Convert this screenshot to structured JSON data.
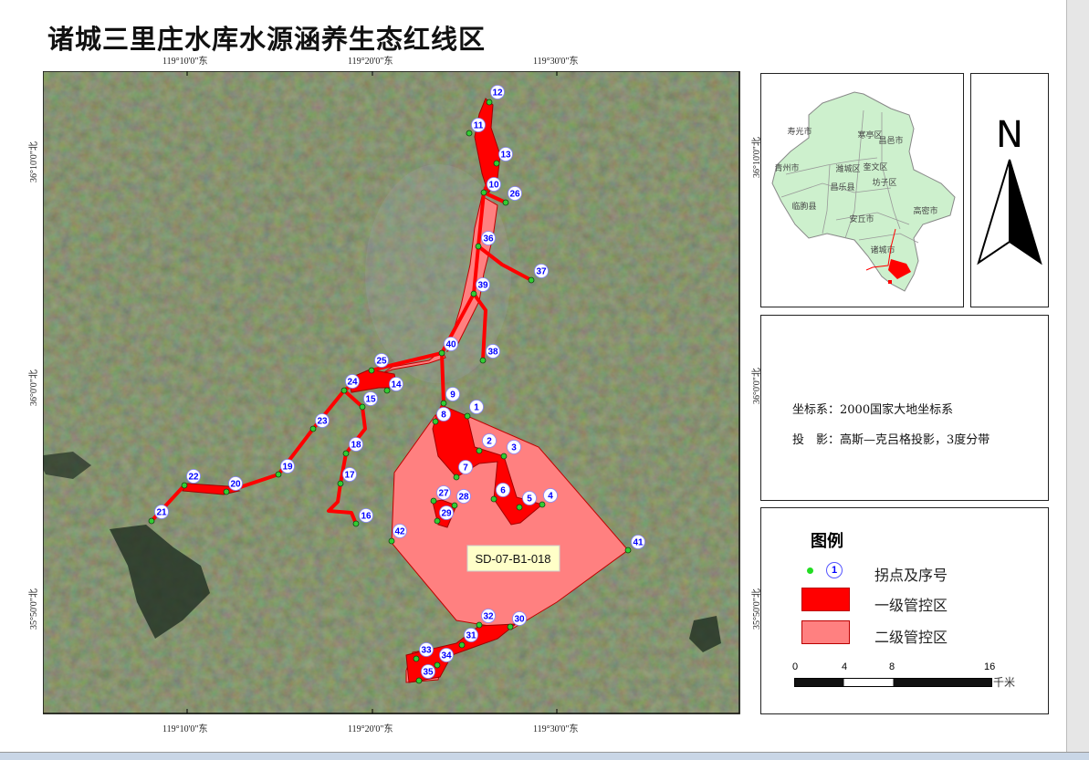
{
  "title": "诸城三里庄水库水源涵养生态红线区",
  "map": {
    "zone_label": "SD-07-B1-018",
    "colors": {
      "primary_zone": "#ff0000",
      "secondary_zone": "#ff8080",
      "point": "#33cc33",
      "point_label": "#0000ff"
    },
    "top_longitudes": [
      "119°10'0\"东",
      "119°20'0\"东",
      "119°30'0\"东"
    ],
    "bottom_longitudes": [
      "119°10'0\"东",
      "119°20'0\"东",
      "119°30'0\"东"
    ],
    "left_latitudes": [
      "36°10'0\"北",
      "36°0'0\"北",
      "35°50'0\"北"
    ],
    "right_latitudes": [
      "36°10'0\"北",
      "36°0'0\"北",
      "35°50'0\"北"
    ],
    "points": [
      "1",
      "2",
      "3",
      "4",
      "5",
      "6",
      "7",
      "8",
      "9",
      "10",
      "11",
      "12",
      "13",
      "14",
      "15",
      "16",
      "17",
      "18",
      "19",
      "20",
      "21",
      "22",
      "23",
      "24",
      "25",
      "26",
      "27",
      "28",
      "29",
      "30",
      "31",
      "32",
      "33",
      "34",
      "35",
      "36",
      "37",
      "38",
      "39",
      "40",
      "41",
      "42"
    ]
  },
  "inset": {
    "regions": [
      "寿光市",
      "寒亭区",
      "昌邑市",
      "青州市",
      "潍城区",
      "奎文区",
      "昌乐县",
      "坊子区",
      "临朐县",
      "高密市",
      "安丘市",
      "诸城市"
    ]
  },
  "north_arrow": {
    "label": "N"
  },
  "info": {
    "crs_label": "坐标系：2000国家大地坐标系",
    "projection_label": "投　影：高斯—克吕格投影，3度分带"
  },
  "legend": {
    "title": "图例",
    "point_sample": "1",
    "items": [
      "拐点及序号",
      "一级管控区",
      "二级管控区"
    ],
    "scale": {
      "ticks": [
        "0",
        "4",
        "8",
        "16"
      ],
      "unit": "千米"
    }
  }
}
